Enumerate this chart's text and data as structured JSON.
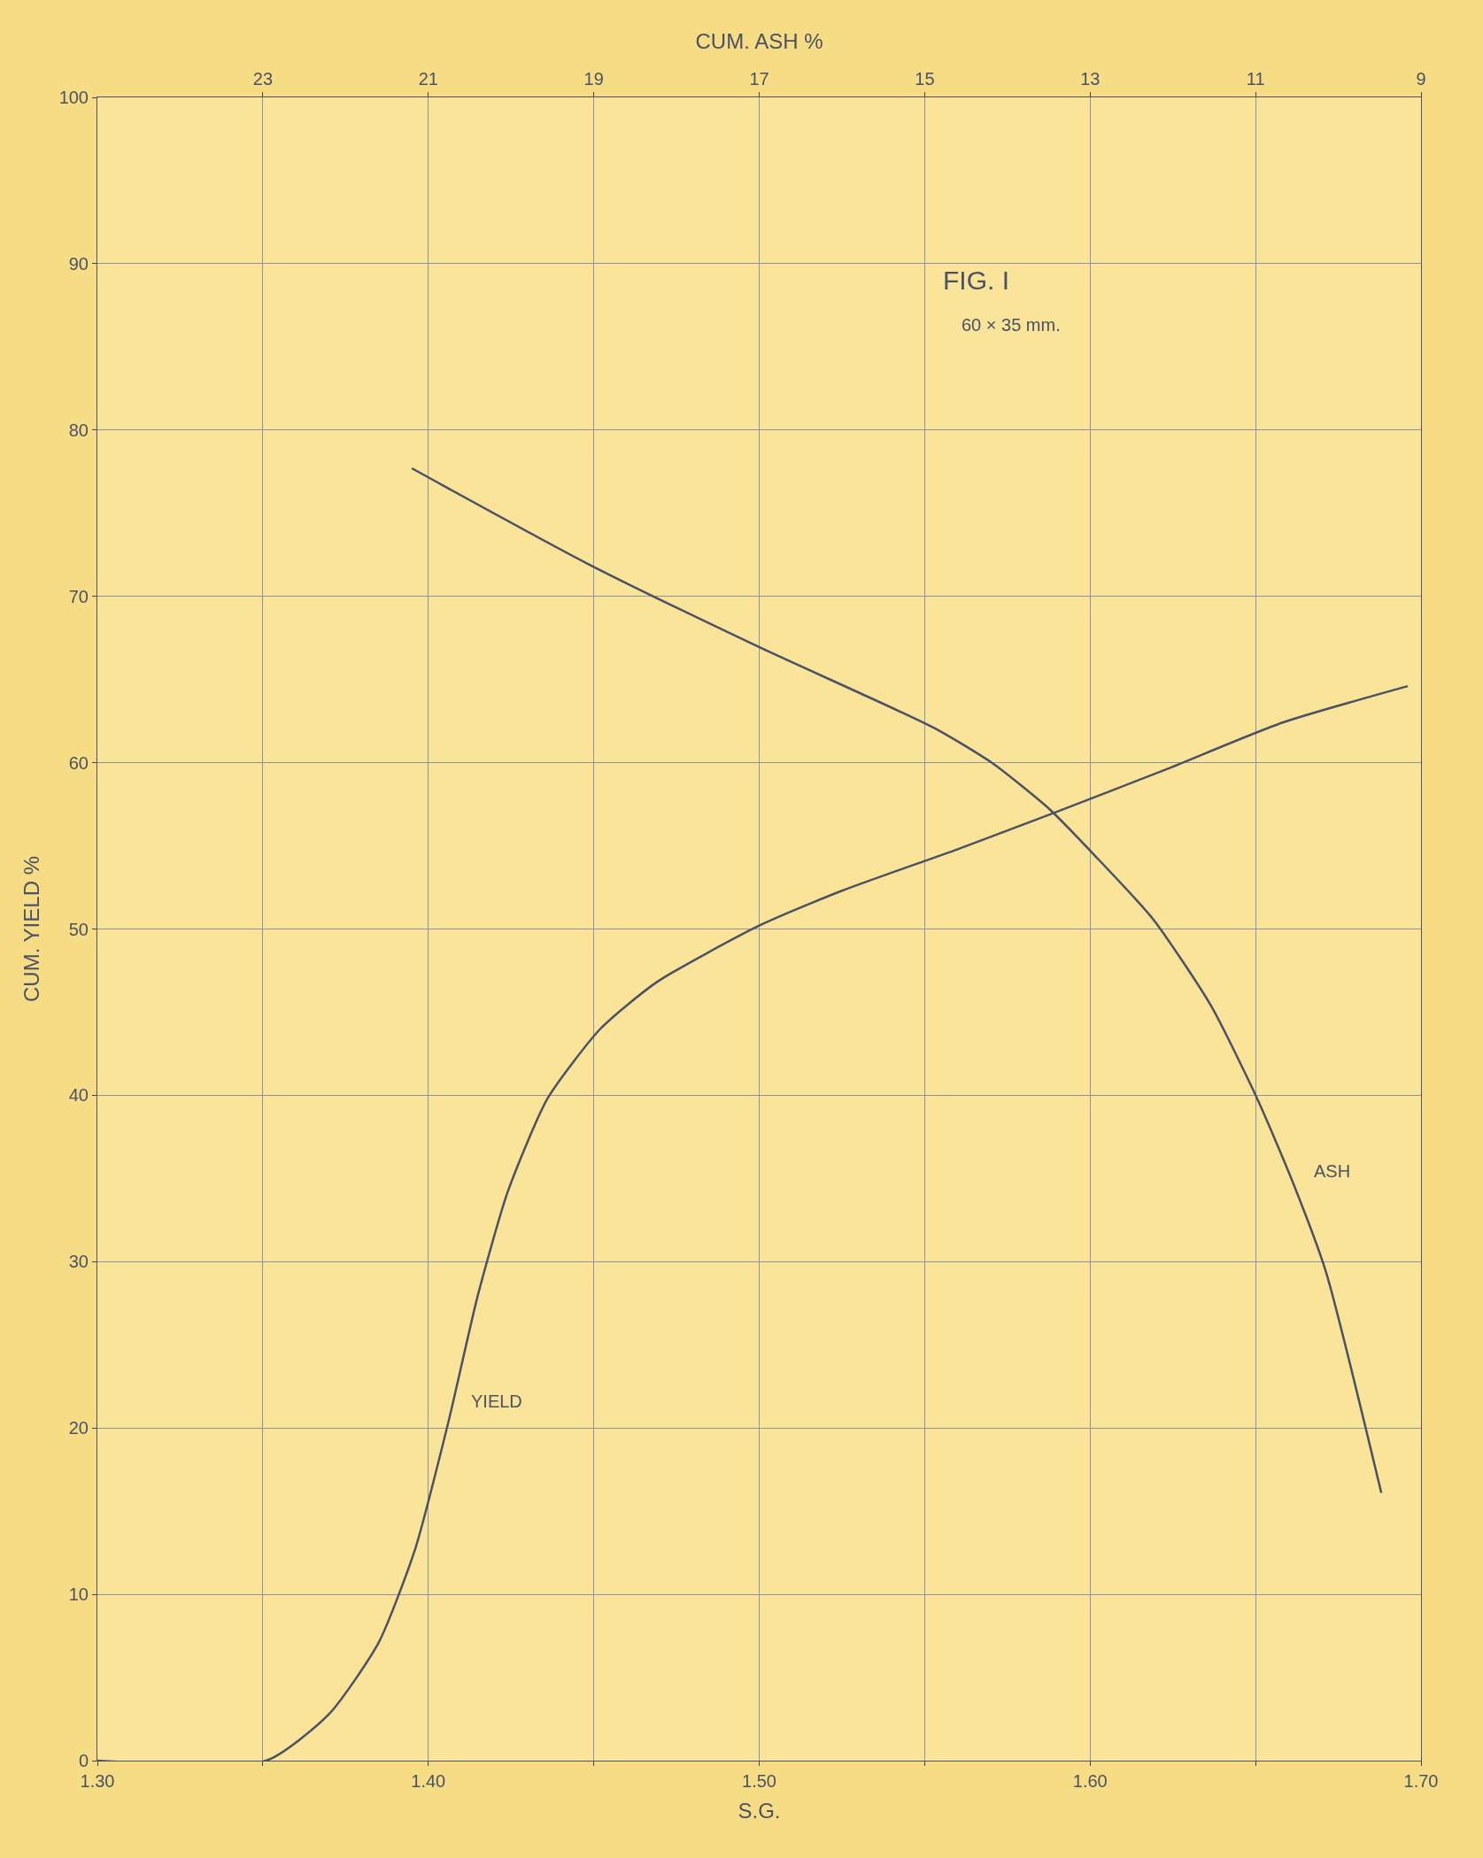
{
  "chart_data": {
    "type": "line",
    "title": "FIG. I",
    "subtitle": "60 × 35 mm.",
    "xlabel": "S.G.",
    "ylabel": "CUM. YIELD %",
    "x2label": "CUM. ASH %",
    "xlim": [
      1.3,
      1.7
    ],
    "xticks": [
      {
        "value": 1.3,
        "label": "1.30"
      },
      {
        "value": 1.35,
        "label": null
      },
      {
        "value": 1.4,
        "label": "1.40"
      },
      {
        "value": 1.45,
        "label": null
      },
      {
        "value": 1.5,
        "label": "1.50"
      },
      {
        "value": 1.55,
        "label": null
      },
      {
        "value": 1.6,
        "label": "1.60"
      },
      {
        "value": 1.65,
        "label": null
      },
      {
        "value": 1.7,
        "label": "1.70"
      }
    ],
    "x2lim": [
      25,
      9
    ],
    "x2ticks": [
      23,
      21,
      19,
      17,
      15,
      13,
      11,
      9
    ],
    "ylim": [
      0,
      100
    ],
    "yticks": [
      0,
      10,
      20,
      30,
      40,
      50,
      60,
      70,
      80,
      90,
      100
    ],
    "grid": true,
    "legend": false,
    "marker": "none",
    "line_style": "solid",
    "series": [
      {
        "name": "YIELD",
        "color": "#4a5263",
        "x": [
          1.3,
          1.351,
          1.37,
          1.385,
          1.396,
          1.406,
          1.415,
          1.424,
          1.436,
          1.452,
          1.469,
          1.5,
          1.525,
          1.56,
          1.588,
          1.623,
          1.658,
          1.696
        ],
        "values": [
          0,
          0,
          2.8,
          7.1,
          12.7,
          20.3,
          28,
          34.2,
          39.8,
          44,
          46.8,
          50.2,
          52.3,
          54.8,
          56.9,
          59.6,
          62.4,
          64.6
        ]
      },
      {
        "name": "ASH",
        "color": "#4a5263",
        "axis": "x2",
        "x": [
          21.2,
          19.07,
          16.98,
          14.89,
          14.19,
          13.49,
          12.94,
          12.24,
          11.54,
          10.98,
          10.56,
          10.15,
          9.48
        ],
        "values": [
          77.7,
          71.95,
          66.9,
          62.1,
          60,
          57.2,
          54.4,
          50.6,
          45.4,
          39.8,
          34.9,
          29.4,
          16.1
        ]
      }
    ]
  }
}
